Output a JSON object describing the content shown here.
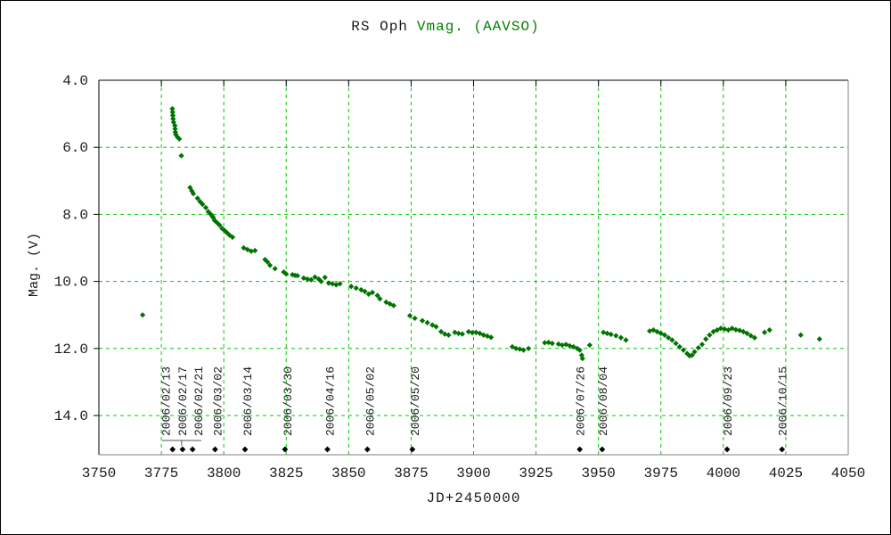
{
  "title": {
    "object": "RS Oph",
    "series": "Vmag. (AAVSO)"
  },
  "colors": {
    "data_green": "#007300",
    "grid_green": "#00cc00",
    "title_green": "#008000",
    "text": "#1a1a1a",
    "frame_dark": "#000000",
    "frame_light": "#808080",
    "event_marker": "#000000"
  },
  "chart_data": {
    "type": "scatter",
    "title": "RS Oph Vmag. (AAVSO)",
    "xlabel": "JD+2450000",
    "ylabel": "Mag. (V)",
    "xlim": [
      3750,
      4050
    ],
    "ylim": [
      15.2,
      4.0
    ],
    "y_inverted": true,
    "grid": true,
    "legend": "none",
    "marker": "diamond",
    "x_ticks": [
      3750,
      3775,
      3800,
      3825,
      3850,
      3875,
      3900,
      3925,
      3950,
      3975,
      4000,
      4025,
      4050
    ],
    "y_ticks": [
      4.0,
      6.0,
      8.0,
      10.0,
      12.0,
      14.0
    ],
    "series": [
      {
        "name": "Vmag (AAVSO)",
        "points": [
          [
            3767.5,
            11.0
          ],
          [
            3779.4,
            4.85
          ],
          [
            3779.5,
            4.95
          ],
          [
            3779.6,
            5.05
          ],
          [
            3779.7,
            5.15
          ],
          [
            3779.9,
            5.25
          ],
          [
            3780.4,
            5.35
          ],
          [
            3780.5,
            5.45
          ],
          [
            3780.6,
            5.55
          ],
          [
            3780.8,
            5.62
          ],
          [
            3781.5,
            5.7
          ],
          [
            3782.2,
            5.75
          ],
          [
            3783.0,
            6.25
          ],
          [
            3786.5,
            7.2
          ],
          [
            3787.2,
            7.3
          ],
          [
            3787.8,
            7.38
          ],
          [
            3789.5,
            7.52
          ],
          [
            3790.5,
            7.62
          ],
          [
            3791.5,
            7.7
          ],
          [
            3792.8,
            7.8
          ],
          [
            3793.8,
            7.92
          ],
          [
            3794.8,
            8.0
          ],
          [
            3795.3,
            8.05
          ],
          [
            3795.8,
            8.1
          ],
          [
            3796.3,
            8.18
          ],
          [
            3797.3,
            8.25
          ],
          [
            3798.3,
            8.32
          ],
          [
            3799.3,
            8.42
          ],
          [
            3800.3,
            8.48
          ],
          [
            3801.3,
            8.55
          ],
          [
            3802.3,
            8.62
          ],
          [
            3803.5,
            8.68
          ],
          [
            3808.0,
            9.0
          ],
          [
            3809.5,
            9.05
          ],
          [
            3811.0,
            9.1
          ],
          [
            3812.5,
            9.08
          ],
          [
            3816.5,
            9.35
          ],
          [
            3817.5,
            9.42
          ],
          [
            3818.5,
            9.52
          ],
          [
            3820.5,
            9.62
          ],
          [
            3824.0,
            9.72
          ],
          [
            3825.0,
            9.78
          ],
          [
            3827.5,
            9.8
          ],
          [
            3828.5,
            9.82
          ],
          [
            3829.5,
            9.83
          ],
          [
            3832.0,
            9.9
          ],
          [
            3833.5,
            9.93
          ],
          [
            3835.0,
            9.95
          ],
          [
            3836.5,
            9.87
          ],
          [
            3838.0,
            9.93
          ],
          [
            3839.0,
            10.0
          ],
          [
            3840.5,
            9.88
          ],
          [
            3842.0,
            10.05
          ],
          [
            3843.5,
            10.07
          ],
          [
            3845.0,
            10.1
          ],
          [
            3846.5,
            10.07
          ],
          [
            3851.0,
            10.15
          ],
          [
            3853.0,
            10.2
          ],
          [
            3855.0,
            10.25
          ],
          [
            3856.5,
            10.3
          ],
          [
            3858.0,
            10.38
          ],
          [
            3859.5,
            10.33
          ],
          [
            3861.5,
            10.42
          ],
          [
            3862.5,
            10.52
          ],
          [
            3865.0,
            10.62
          ],
          [
            3866.5,
            10.67
          ],
          [
            3868.0,
            10.72
          ],
          [
            3874.5,
            11.02
          ],
          [
            3876.5,
            11.1
          ],
          [
            3879.5,
            11.17
          ],
          [
            3881.5,
            11.23
          ],
          [
            3883.5,
            11.3
          ],
          [
            3885.0,
            11.35
          ],
          [
            3887.0,
            11.5
          ],
          [
            3888.5,
            11.57
          ],
          [
            3890.0,
            11.6
          ],
          [
            3892.5,
            11.52
          ],
          [
            3894.0,
            11.55
          ],
          [
            3895.5,
            11.57
          ],
          [
            3898.0,
            11.5
          ],
          [
            3899.5,
            11.53
          ],
          [
            3901.0,
            11.52
          ],
          [
            3902.5,
            11.55
          ],
          [
            3904.0,
            11.6
          ],
          [
            3905.5,
            11.63
          ],
          [
            3907.0,
            11.67
          ],
          [
            3915.5,
            11.95
          ],
          [
            3917.0,
            12.0
          ],
          [
            3918.5,
            12.02
          ],
          [
            3920.0,
            12.05
          ],
          [
            3922.0,
            12.0
          ],
          [
            3928.5,
            11.83
          ],
          [
            3930.0,
            11.82
          ],
          [
            3931.5,
            11.85
          ],
          [
            3934.0,
            11.87
          ],
          [
            3935.5,
            11.9
          ],
          [
            3937.0,
            11.88
          ],
          [
            3938.5,
            11.92
          ],
          [
            3940.0,
            11.95
          ],
          [
            3941.5,
            12.0
          ],
          [
            3942.5,
            12.05
          ],
          [
            3943.3,
            12.2
          ],
          [
            3943.6,
            12.3
          ],
          [
            3946.5,
            11.9
          ],
          [
            3952.0,
            11.52
          ],
          [
            3953.5,
            11.55
          ],
          [
            3955.0,
            11.58
          ],
          [
            3957.0,
            11.62
          ],
          [
            3959.0,
            11.68
          ],
          [
            3961.0,
            11.75
          ],
          [
            3970.5,
            11.48
          ],
          [
            3972.0,
            11.45
          ],
          [
            3973.5,
            11.5
          ],
          [
            3975.0,
            11.55
          ],
          [
            3976.5,
            11.6
          ],
          [
            3978.0,
            11.68
          ],
          [
            3979.5,
            11.75
          ],
          [
            3981.0,
            11.85
          ],
          [
            3982.5,
            11.95
          ],
          [
            3984.0,
            12.05
          ],
          [
            3985.5,
            12.15
          ],
          [
            3986.5,
            12.22
          ],
          [
            3987.5,
            12.2
          ],
          [
            3988.5,
            12.1
          ],
          [
            3990.0,
            11.98
          ],
          [
            3991.5,
            11.88
          ],
          [
            3993.0,
            11.72
          ],
          [
            3994.5,
            11.6
          ],
          [
            3996.0,
            11.5
          ],
          [
            3997.5,
            11.45
          ],
          [
            3999.0,
            11.4
          ],
          [
            4000.5,
            11.42
          ],
          [
            4002.0,
            11.45
          ],
          [
            4003.5,
            11.4
          ],
          [
            4005.0,
            11.44
          ],
          [
            4006.5,
            11.46
          ],
          [
            4008.0,
            11.5
          ],
          [
            4009.5,
            11.55
          ],
          [
            4011.0,
            11.62
          ],
          [
            4012.5,
            11.68
          ],
          [
            4016.5,
            11.52
          ],
          [
            4018.5,
            11.45
          ],
          [
            4031.0,
            11.6
          ],
          [
            4038.5,
            11.72
          ]
        ]
      }
    ],
    "events": [
      {
        "date": "2006/02/13",
        "jd": 3779.5,
        "dx": -8
      },
      {
        "date": "2006/02/17",
        "jd": 3783.5,
        "dx": -1
      },
      {
        "date": "2006/02/21",
        "jd": 3787.5,
        "dx": 6
      },
      {
        "date": "2006/03/02",
        "jd": 3796.5,
        "dx": 2
      },
      {
        "date": "2006/03/14",
        "jd": 3808.5,
        "dx": 2
      },
      {
        "date": "2006/03/30",
        "jd": 3824.5,
        "dx": 2
      },
      {
        "date": "2006/04/16",
        "jd": 3841.5,
        "dx": 2
      },
      {
        "date": "2006/05/02",
        "jd": 3857.5,
        "dx": 2
      },
      {
        "date": "2006/05/20",
        "jd": 3875.5,
        "dx": 2
      },
      {
        "date": "2006/07/26",
        "jd": 3942.5,
        "dx": 0
      },
      {
        "date": "2006/08/04",
        "jd": 3951.5,
        "dx": 0
      },
      {
        "date": "2006/09/23",
        "jd": 4001.5,
        "dx": 0
      },
      {
        "date": "2006/10/15",
        "jd": 4023.5,
        "dx": 0
      }
    ],
    "event_group_bracket": {
      "from_event": 0,
      "to_event": 2,
      "tick_event": 1
    }
  }
}
